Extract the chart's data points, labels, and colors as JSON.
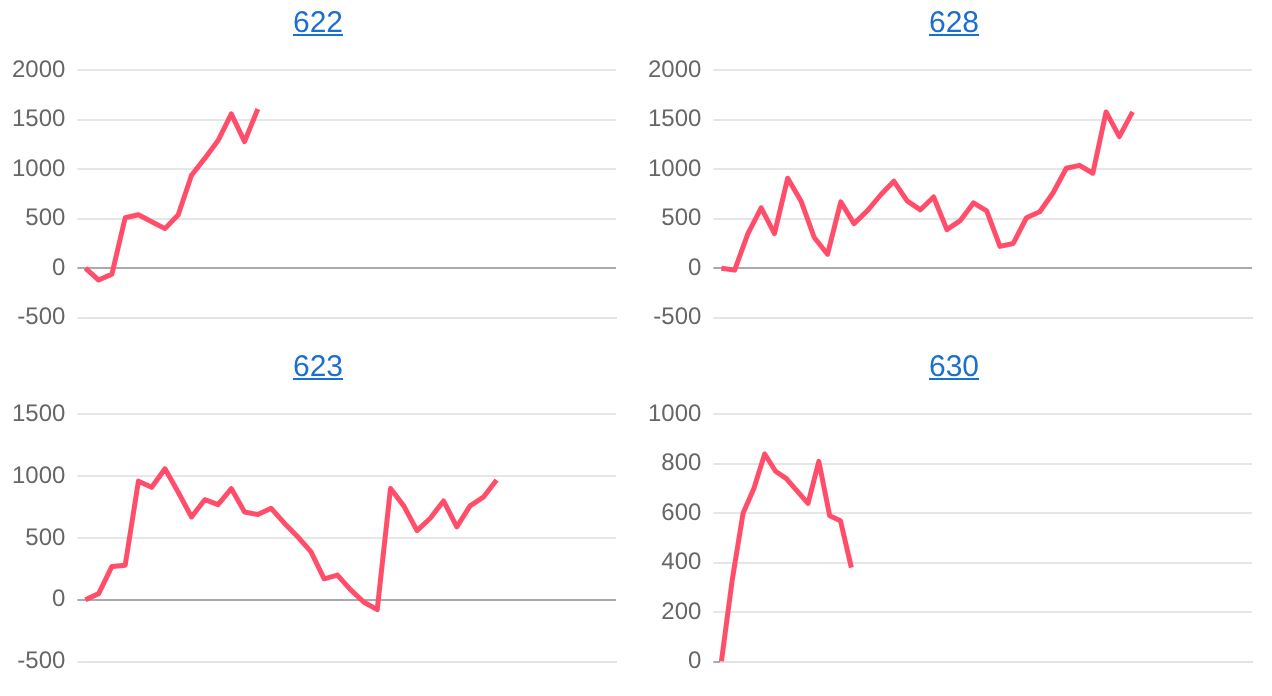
{
  "chart_data": [
    {
      "type": "line",
      "title": "622",
      "categories": [
        null,
        null,
        null,
        null,
        null,
        null,
        null,
        null,
        null,
        null,
        null,
        null,
        null,
        null,
        null,
        null,
        null,
        null,
        null,
        null,
        null,
        null,
        null,
        null,
        null,
        null,
        null,
        null,
        null,
        null,
        null,
        null,
        null,
        null,
        null,
        null,
        null,
        null,
        null,
        null,
        null
      ],
      "series": [
        {
          "color": "#ff4d6a",
          "values": [
            0,
            -120,
            -60,
            510,
            540,
            470,
            400,
            540,
            940,
            1110,
            1290,
            1560,
            1280,
            1610,
            null,
            null,
            null,
            null,
            null,
            null,
            null,
            null,
            null,
            null,
            null,
            null,
            null,
            null,
            null,
            null,
            null,
            null,
            null,
            null,
            null,
            null,
            null,
            null,
            null,
            null,
            null
          ]
        }
      ],
      "ylim": [
        -500,
        2000
      ],
      "yticks": [
        -500,
        0,
        500,
        1000,
        1500,
        2000
      ],
      "grid": "y",
      "tick_labels": "y",
      "marker": "none",
      "legend": false
    },
    {
      "type": "line",
      "title": "628",
      "categories": [
        null,
        null,
        null,
        null,
        null,
        null,
        null,
        null,
        null,
        null,
        null,
        null,
        null,
        null,
        null,
        null,
        null,
        null,
        null,
        null,
        null,
        null,
        null,
        null,
        null,
        null,
        null,
        null,
        null,
        null,
        null,
        null,
        null,
        null,
        null,
        null,
        null,
        null,
        null,
        null,
        null
      ],
      "series": [
        {
          "color": "#ff4d6a",
          "values": [
            0,
            -20,
            350,
            610,
            350,
            910,
            680,
            310,
            140,
            670,
            450,
            580,
            740,
            880,
            680,
            590,
            720,
            390,
            480,
            660,
            580,
            220,
            250,
            510,
            570,
            760,
            1010,
            1040,
            960,
            1580,
            1330,
            1580,
            null,
            null,
            null,
            null,
            null,
            null,
            null,
            null,
            null
          ]
        }
      ],
      "ylim": [
        -500,
        2000
      ],
      "yticks": [
        -500,
        0,
        500,
        1000,
        1500,
        2000
      ],
      "grid": "y",
      "tick_labels": "y",
      "marker": "none",
      "legend": false
    },
    {
      "type": "line",
      "title": "623",
      "categories": [
        null,
        null,
        null,
        null,
        null,
        null,
        null,
        null,
        null,
        null,
        null,
        null,
        null,
        null,
        null,
        null,
        null,
        null,
        null,
        null,
        null,
        null,
        null,
        null,
        null,
        null,
        null,
        null,
        null,
        null,
        null,
        null,
        null,
        null,
        null,
        null,
        null,
        null,
        null,
        null,
        null
      ],
      "series": [
        {
          "color": "#ff4d6a",
          "values": [
            0,
            50,
            270,
            280,
            960,
            910,
            1060,
            870,
            670,
            810,
            770,
            900,
            710,
            690,
            740,
            620,
            510,
            390,
            170,
            200,
            80,
            -20,
            -80,
            900,
            760,
            560,
            660,
            800,
            590,
            760,
            830,
            970,
            null,
            null,
            null,
            null,
            null,
            null,
            null,
            null,
            null
          ]
        }
      ],
      "ylim": [
        -500,
        1500
      ],
      "yticks": [
        -500,
        0,
        500,
        1000,
        1500
      ],
      "grid": "y",
      "tick_labels": "y",
      "marker": "none",
      "legend": false
    },
    {
      "type": "line",
      "title": "630",
      "categories": [
        null,
        null,
        null,
        null,
        null,
        null,
        null,
        null,
        null,
        null,
        null,
        null,
        null,
        null,
        null,
        null,
        null,
        null,
        null,
        null,
        null,
        null,
        null,
        null,
        null,
        null,
        null,
        null,
        null,
        null,
        null,
        null,
        null,
        null,
        null,
        null,
        null,
        null,
        null,
        null,
        null,
        null,
        null,
        null,
        null,
        null,
        null,
        null,
        null,
        null
      ],
      "series": [
        {
          "color": "#ff4d6a",
          "values": [
            0,
            330,
            600,
            700,
            840,
            770,
            740,
            690,
            640,
            810,
            590,
            570,
            380,
            null,
            null,
            null,
            null,
            null,
            null,
            null,
            null,
            null,
            null,
            null,
            null,
            null,
            null,
            null,
            null,
            null,
            null,
            null,
            null,
            null,
            null,
            null,
            null,
            null,
            null,
            null,
            null,
            null,
            null,
            null,
            null,
            null,
            null,
            null,
            null,
            null
          ]
        }
      ],
      "ylim": [
        0,
        1000
      ],
      "yticks": [
        0,
        200,
        400,
        600,
        800,
        1000
      ],
      "grid": "y",
      "tick_labels": "y",
      "marker": "none",
      "legend": false
    }
  ]
}
